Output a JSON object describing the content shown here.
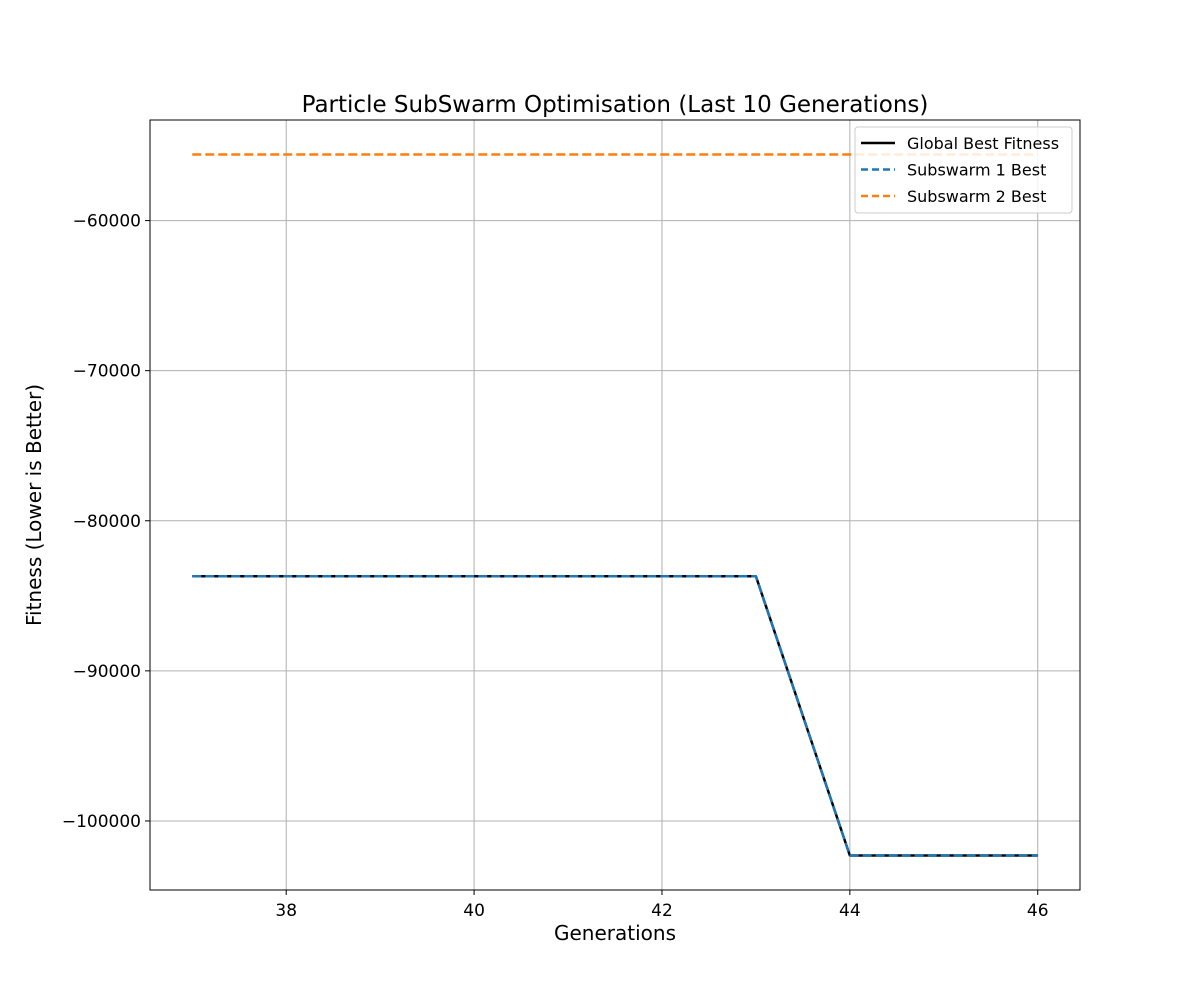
{
  "chart_data": {
    "type": "line",
    "title": "Particle SubSwarm Optimisation (Last 10 Generations)",
    "xlabel": "Generations",
    "ylabel": "Fitness (Lower is Better)",
    "xlim": [
      36.55,
      46.45
    ],
    "ylim": [
      -104600,
      -53300
    ],
    "xticks": [
      38,
      40,
      42,
      44,
      46
    ],
    "xtick_labels": [
      "38",
      "40",
      "42",
      "44",
      "46"
    ],
    "yticks": [
      -60000,
      -70000,
      -80000,
      -90000,
      -100000
    ],
    "ytick_labels": [
      "−60000",
      "−70000",
      "−80000",
      "−90000",
      "−100000"
    ],
    "grid": true,
    "legend_position": "top-right",
    "x": [
      37,
      38,
      39,
      40,
      41,
      42,
      43,
      44,
      45,
      46
    ],
    "series": [
      {
        "name": "Global Best Fitness",
        "color": "#000000",
        "style": "solid",
        "values": [
          -83700,
          -83700,
          -83700,
          -83700,
          -83700,
          -83700,
          -83700,
          -102300,
          -102300,
          -102300
        ]
      },
      {
        "name": "Subswarm 1 Best",
        "color": "#1f77b4",
        "style": "dashed",
        "values": [
          -83700,
          -83700,
          -83700,
          -83700,
          -83700,
          -83700,
          -83700,
          -102300,
          -102300,
          -102300
        ]
      },
      {
        "name": "Subswarm 2 Best",
        "color": "#ff7f0e",
        "style": "dashed",
        "values": [
          -55600,
          -55600,
          -55600,
          -55600,
          -55600,
          -55600,
          -55600,
          -55600,
          -55600,
          -55600
        ]
      }
    ]
  }
}
